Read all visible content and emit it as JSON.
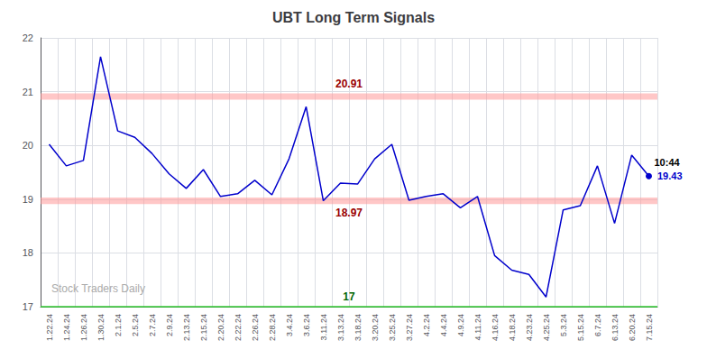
{
  "chart_data": {
    "type": "line",
    "title": "UBT Long Term Signals",
    "categories": [
      "1.22.24",
      "1.24.24",
      "1.26.24",
      "1.30.24",
      "2.1.24",
      "2.5.24",
      "2.7.24",
      "2.9.24",
      "2.13.24",
      "2.15.24",
      "2.20.24",
      "2.22.24",
      "2.26.24",
      "2.28.24",
      "3.4.24",
      "3.6.24",
      "3.11.24",
      "3.13.24",
      "3.18.24",
      "3.20.24",
      "3.25.24",
      "3.27.24",
      "4.2.24",
      "4.4.24",
      "4.9.24",
      "4.11.24",
      "4.16.24",
      "4.18.24",
      "4.23.24",
      "4.25.24",
      "5.3.24",
      "5.15.24",
      "6.7.24",
      "6.13.24",
      "6.20.24",
      "7.15.24"
    ],
    "values": [
      20.02,
      19.62,
      19.72,
      21.65,
      20.27,
      20.15,
      19.85,
      19.47,
      19.2,
      19.55,
      19.05,
      19.1,
      19.35,
      19.08,
      19.75,
      20.72,
      18.97,
      19.3,
      19.28,
      19.75,
      20.02,
      18.98,
      19.05,
      19.1,
      18.84,
      19.05,
      17.95,
      17.68,
      17.6,
      17.18,
      18.8,
      18.88,
      19.62,
      18.55,
      19.82,
      19.43
    ],
    "color": "#0000cc",
    "ylim": [
      17,
      22
    ],
    "yticks": [
      17,
      18,
      19,
      20,
      21,
      22
    ],
    "grid": true,
    "bands": [
      {
        "value": 20.91,
        "label": "20.91",
        "color": "#ff9999",
        "label_color": "#990000"
      },
      {
        "value": 18.97,
        "label": "18.97",
        "color": "#ff9999",
        "label_color": "#990000"
      }
    ],
    "hlines": [
      {
        "value": 17,
        "label": "17",
        "color": "#33cc33",
        "label_color": "#006600"
      }
    ],
    "last_point": {
      "time_label": "10:44",
      "value_label": "19.43"
    },
    "watermark": {
      "text": "Stock Traders Daily",
      "color": "#aaaaaa"
    }
  }
}
